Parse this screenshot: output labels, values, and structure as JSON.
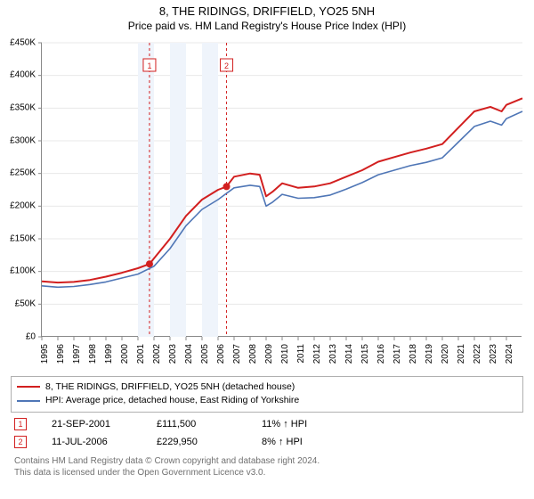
{
  "title": "8, THE RIDINGS, DRIFFIELD, YO25 5NH",
  "subtitle": "Price paid vs. HM Land Registry's House Price Index (HPI)",
  "chart": {
    "type": "line",
    "xlim": [
      1995,
      2025
    ],
    "ylim": [
      0,
      450000
    ],
    "ytick_step": 50000,
    "yticks": [
      "£0",
      "£50K",
      "£100K",
      "£150K",
      "£200K",
      "£250K",
      "£300K",
      "£350K",
      "£400K",
      "£450K"
    ],
    "xticks": [
      1995,
      1996,
      1997,
      1998,
      1999,
      2000,
      2001,
      2002,
      2003,
      2004,
      2005,
      2006,
      2007,
      2008,
      2009,
      2010,
      2011,
      2012,
      2013,
      2014,
      2015,
      2016,
      2017,
      2018,
      2019,
      2020,
      2021,
      2022,
      2023,
      2024
    ],
    "grid_color": "#e8e8e8",
    "bands": [
      {
        "from": 2001,
        "to": 2002,
        "color": "#eff4fb"
      },
      {
        "from": 2003,
        "to": 2004,
        "color": "#eff4fb"
      },
      {
        "from": 2005,
        "to": 2006,
        "color": "#eff4fb"
      }
    ],
    "sale_lines": [
      {
        "x": 2001.72,
        "label": "1",
        "color": "#d21f1f"
      },
      {
        "x": 2006.53,
        "label": "2",
        "color": "#d21f1f"
      }
    ],
    "series": [
      {
        "name": "8, THE RIDINGS, DRIFFIELD, YO25 5NH (detached house)",
        "color": "#d21f1f",
        "line_width": 2,
        "points": [
          [
            1995,
            85000
          ],
          [
            1996,
            83000
          ],
          [
            1997,
            84000
          ],
          [
            1998,
            87000
          ],
          [
            1999,
            92000
          ],
          [
            2000,
            98000
          ],
          [
            2001,
            105000
          ],
          [
            2001.72,
            111500
          ],
          [
            2002,
            120000
          ],
          [
            2003,
            150000
          ],
          [
            2004,
            185000
          ],
          [
            2005,
            210000
          ],
          [
            2006,
            225000
          ],
          [
            2006.53,
            229950
          ],
          [
            2007,
            245000
          ],
          [
            2008,
            250000
          ],
          [
            2008.6,
            248000
          ],
          [
            2009,
            215000
          ],
          [
            2009.4,
            222000
          ],
          [
            2010,
            235000
          ],
          [
            2011,
            228000
          ],
          [
            2012,
            230000
          ],
          [
            2013,
            235000
          ],
          [
            2014,
            245000
          ],
          [
            2015,
            255000
          ],
          [
            2016,
            268000
          ],
          [
            2017,
            275000
          ],
          [
            2018,
            282000
          ],
          [
            2019,
            288000
          ],
          [
            2020,
            295000
          ],
          [
            2021,
            320000
          ],
          [
            2022,
            345000
          ],
          [
            2023,
            352000
          ],
          [
            2023.7,
            345000
          ],
          [
            2024,
            355000
          ],
          [
            2025,
            365000
          ]
        ],
        "markers": [
          {
            "x": 2001.72,
            "y": 111500
          },
          {
            "x": 2006.53,
            "y": 229950
          }
        ]
      },
      {
        "name": "HPI: Average price, detached house, East Riding of Yorkshire",
        "color": "#4f76b6",
        "line_width": 1.6,
        "points": [
          [
            1995,
            78000
          ],
          [
            1996,
            76000
          ],
          [
            1997,
            77000
          ],
          [
            1998,
            80000
          ],
          [
            1999,
            84000
          ],
          [
            2000,
            90000
          ],
          [
            2001,
            96000
          ],
          [
            2002,
            108000
          ],
          [
            2003,
            135000
          ],
          [
            2004,
            170000
          ],
          [
            2005,
            195000
          ],
          [
            2006,
            210000
          ],
          [
            2007,
            228000
          ],
          [
            2008,
            232000
          ],
          [
            2008.6,
            230000
          ],
          [
            2009,
            200000
          ],
          [
            2009.4,
            206000
          ],
          [
            2010,
            218000
          ],
          [
            2011,
            212000
          ],
          [
            2012,
            213000
          ],
          [
            2013,
            217000
          ],
          [
            2014,
            226000
          ],
          [
            2015,
            236000
          ],
          [
            2016,
            248000
          ],
          [
            2017,
            255000
          ],
          [
            2018,
            262000
          ],
          [
            2019,
            267000
          ],
          [
            2020,
            274000
          ],
          [
            2021,
            298000
          ],
          [
            2022,
            322000
          ],
          [
            2023,
            330000
          ],
          [
            2023.7,
            324000
          ],
          [
            2024,
            334000
          ],
          [
            2025,
            345000
          ]
        ]
      }
    ]
  },
  "legend": {
    "items": [
      {
        "color": "#d21f1f",
        "label": "8, THE RIDINGS, DRIFFIELD, YO25 5NH (detached house)"
      },
      {
        "color": "#4f76b6",
        "label": "HPI: Average price, detached house, East Riding of Yorkshire"
      }
    ]
  },
  "sales": [
    {
      "n": "1",
      "color": "#d21f1f",
      "date": "21-SEP-2001",
      "price": "£111,500",
      "diff": "11% ↑ HPI"
    },
    {
      "n": "2",
      "color": "#d21f1f",
      "date": "11-JUL-2006",
      "price": "£229,950",
      "diff": "8% ↑ HPI"
    }
  ],
  "footer_line1": "Contains HM Land Registry data © Crown copyright and database right 2024.",
  "footer_line2": "This data is licensed under the Open Government Licence v3.0."
}
